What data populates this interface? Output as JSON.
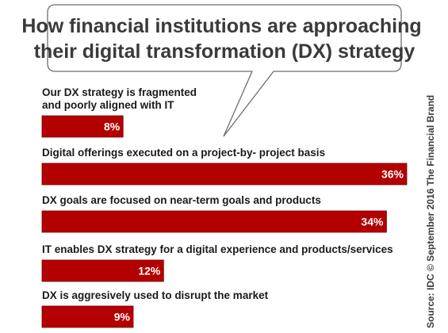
{
  "chart_data": {
    "type": "bar",
    "orientation": "horizontal",
    "title": "How financial institutions are approaching their digital transformation (DX) strategy",
    "title_lines": [
      "How financial institutions are approaching",
      "their digital transformation (DX) strategy"
    ],
    "categories": [
      "Our DX strategy is fragmented and poorly aligned with IT",
      "Digital offerings executed on a project-by- project basis",
      "DX goals are focused on near-term goals and products",
      "IT enables DX strategy for a digital experience and products/services",
      "DX is aggresively used to disrupt the market"
    ],
    "category_lines": [
      [
        "Our DX strategy is fragmented",
        "and poorly aligned with IT"
      ],
      [
        "Digital offerings executed on a project-by- project basis"
      ],
      [
        "DX goals are focused on near-term goals and products"
      ],
      [
        "IT enables DX strategy for a digital experience and products/services"
      ],
      [
        "DX is aggresively used to disrupt the market"
      ]
    ],
    "values": [
      8,
      36,
      34,
      12,
      9
    ],
    "value_labels": [
      "8%",
      "36%",
      "34%",
      "12%",
      "9%"
    ],
    "unit": "%",
    "xlim": [
      0,
      36
    ],
    "grid": false,
    "bar_color": "#b30000",
    "value_label_color": "#ffffff"
  },
  "source": "Source: IDC © September 2016 The Financial Brand"
}
